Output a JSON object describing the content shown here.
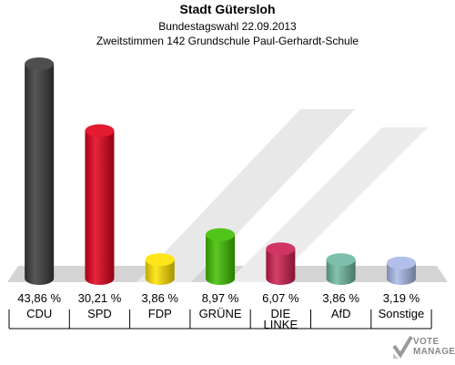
{
  "header": {
    "title": "Stadt Gütersloh",
    "subtitle": "Bundestagswahl 22.09.2013",
    "subtitle2": "Zweitstimmen 142 Grundschule Paul-Gerhardt-Schule"
  },
  "logo": {
    "line1": "VOTE",
    "line2": "MANAGER"
  },
  "chart_data": {
    "type": "bar",
    "title": "Stadt Gütersloh",
    "subtitle": "Bundestagswahl 22.09.2013 / Zweitstimmen 142 Grundschule Paul-Gerhardt-Schule",
    "categories": [
      "CDU",
      "SPD",
      "FDP",
      "GRÜNE",
      "DIE LINKE",
      "AfD",
      "Sonstige"
    ],
    "category_lines": [
      [
        "CDU"
      ],
      [
        "SPD"
      ],
      [
        "FDP"
      ],
      [
        "GRÜNE"
      ],
      [
        "DIE",
        "LINKE"
      ],
      [
        "AfD"
      ],
      [
        "Sonstige"
      ]
    ],
    "values": [
      43.86,
      30.21,
      3.86,
      8.97,
      6.07,
      3.86,
      3.19
    ],
    "value_labels": [
      "43,86 %",
      "30,21 %",
      "3,86 %",
      "8,97 %",
      "6,07 %",
      "3,86 %",
      "3,19 %"
    ],
    "colors": [
      "#3a3a3a",
      "#e0001b",
      "#ffe200",
      "#3fbf00",
      "#cc1f4f",
      "#6fb8a0",
      "#a9b8e8"
    ],
    "ylim": [
      0,
      45
    ],
    "grid": false,
    "legend": "none"
  }
}
